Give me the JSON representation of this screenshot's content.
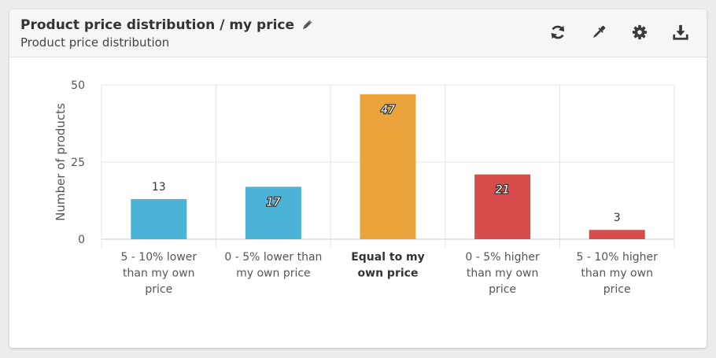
{
  "widget": {
    "title": "Product price distribution / my price",
    "subtitle": "Product price distribution"
  },
  "toolbar": {
    "icons": [
      "refresh-icon",
      "eyedropper-icon",
      "gear-icon",
      "download-icon"
    ]
  },
  "chart_data": {
    "type": "bar",
    "title": "",
    "xlabel": "",
    "ylabel": "Number of products",
    "ylim": [
      0,
      50
    ],
    "yticks": [
      0,
      25,
      50
    ],
    "grid": true,
    "categories": [
      "5 - 10% lower than my own price",
      "0 - 5% lower than my own price",
      "Equal to my own price",
      "0 - 5% higher than my own price",
      "5 - 10% higher than my own price"
    ],
    "category_lines": [
      [
        "5 - 10% lower",
        "than my own",
        "price"
      ],
      [
        "0 - 5% lower than",
        "my own price"
      ],
      [
        "Equal to my",
        "own price"
      ],
      [
        "0 - 5% higher",
        "than my own",
        "price"
      ],
      [
        "5 - 10% higher",
        "than my own",
        "price"
      ]
    ],
    "bold_category": 2,
    "values": [
      13,
      17,
      47,
      21,
      3
    ],
    "colors": [
      "#4ab3d6",
      "#4ab3d6",
      "#eba33c",
      "#d94c4c",
      "#d94c4c"
    ]
  }
}
